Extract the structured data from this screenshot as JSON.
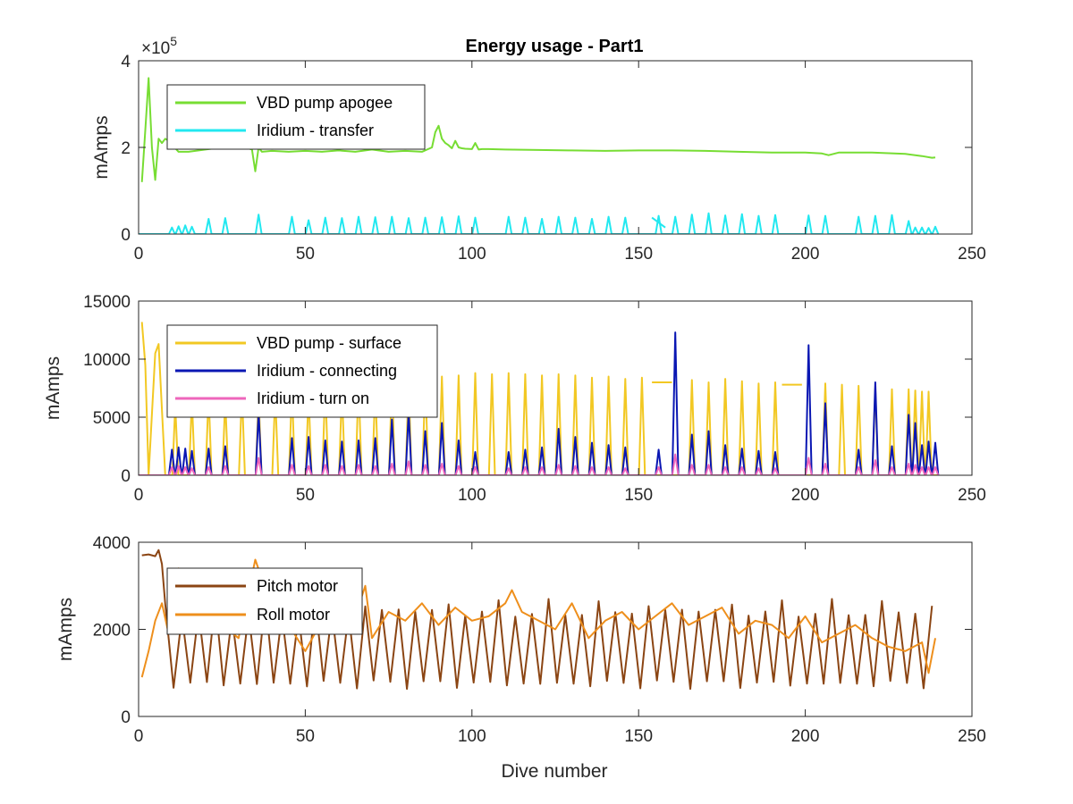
{
  "chart_data": [
    {
      "type": "line",
      "title": "Energy usage - Part1",
      "xlabel": "",
      "ylabel": "mAmps",
      "xlim": [
        0,
        250
      ],
      "ylim": [
        0,
        400000
      ],
      "exponent_label": "×10",
      "exponent_power": "5",
      "xticks": [
        0,
        50,
        100,
        150,
        200,
        250
      ],
      "yticks": [
        0,
        200000,
        400000
      ],
      "ytick_labels": [
        "0",
        "2",
        "4"
      ],
      "legend_position": "upper-left",
      "series": [
        {
          "name": "VBD pump apogee",
          "color": "#77dd33",
          "x": [
            1,
            2,
            3,
            4,
            5,
            6,
            7,
            8,
            9,
            12,
            15,
            20,
            25,
            30,
            34,
            35,
            36,
            37,
            40,
            45,
            50,
            55,
            60,
            65,
            70,
            75,
            80,
            85,
            88,
            89,
            90,
            91,
            92,
            93,
            94,
            95,
            96,
            97,
            98,
            100,
            101,
            102,
            103,
            105,
            110,
            120,
            130,
            140,
            150,
            160,
            170,
            180,
            190,
            200,
            205,
            207,
            210,
            220,
            230,
            235,
            238,
            239
          ],
          "values": [
            120000,
            240000,
            360000,
            200000,
            125000,
            220000,
            210000,
            220000,
            215000,
            190000,
            190000,
            195000,
            200000,
            205000,
            195000,
            145000,
            200000,
            190000,
            192000,
            190000,
            192000,
            190000,
            193000,
            190000,
            195000,
            190000,
            192000,
            190000,
            200000,
            235000,
            250000,
            220000,
            210000,
            205000,
            198000,
            215000,
            200000,
            198000,
            197000,
            196000,
            210000,
            195000,
            196000,
            196000,
            195000,
            194000,
            193000,
            192000,
            193000,
            193000,
            192000,
            190000,
            188000,
            188000,
            186000,
            182000,
            188000,
            188000,
            185000,
            180000,
            176000,
            177000
          ]
        },
        {
          "name": "Iridium - transfer",
          "color": "#22e8f0",
          "peaks": [
            [
              10,
              15000
            ],
            [
              12,
              18000
            ],
            [
              14,
              20000
            ],
            [
              16,
              17000
            ],
            [
              21,
              35000
            ],
            [
              26,
              37000
            ],
            [
              36,
              45000
            ],
            [
              46,
              40000
            ],
            [
              51,
              32000
            ],
            [
              56,
              38000
            ],
            [
              61,
              37000
            ],
            [
              66,
              40000
            ],
            [
              71,
              39000
            ],
            [
              76,
              40000
            ],
            [
              81,
              37000
            ],
            [
              86,
              38000
            ],
            [
              91,
              39000
            ],
            [
              96,
              41000
            ],
            [
              101,
              38000
            ],
            [
              111,
              40000
            ],
            [
              116,
              38000
            ],
            [
              121,
              35000
            ],
            [
              126,
              40000
            ],
            [
              131,
              38000
            ],
            [
              136,
              35000
            ],
            [
              141,
              40000
            ],
            [
              146,
              38000
            ],
            [
              156,
              42000
            ],
            [
              161,
              40000
            ],
            [
              166,
              45000
            ],
            [
              171,
              48000
            ],
            [
              176,
              43000
            ],
            [
              181,
              46000
            ],
            [
              186,
              42000
            ],
            [
              191,
              44000
            ],
            [
              201,
              43000
            ],
            [
              206,
              42000
            ],
            [
              216,
              40000
            ],
            [
              221,
              42000
            ],
            [
              226,
              44000
            ],
            [
              231,
              30000
            ],
            [
              233,
              15000
            ],
            [
              235,
              15000
            ],
            [
              237,
              14000
            ],
            [
              239,
              17000
            ]
          ],
          "segments": [
            [
              154,
              38000,
              158,
              15000
            ]
          ]
        }
      ]
    },
    {
      "type": "line",
      "title": "",
      "xlabel": "",
      "ylabel": "mAmps",
      "xlim": [
        0,
        250
      ],
      "ylim": [
        0,
        15000
      ],
      "xticks": [
        0,
        50,
        100,
        150,
        200,
        250
      ],
      "yticks": [
        0,
        5000,
        10000,
        15000
      ],
      "legend_position": "upper-left",
      "series": [
        {
          "name": "VBD pump - surface",
          "color": "#f2c823",
          "x": [
            1,
            2,
            3,
            5,
            6,
            8
          ],
          "values": [
            13200,
            9500,
            0,
            10500,
            11300,
            0
          ],
          "peaks": [
            [
              11,
              6000
            ],
            [
              16,
              6500
            ],
            [
              21,
              7000
            ],
            [
              26,
              6500
            ],
            [
              31,
              7200
            ],
            [
              36,
              6800
            ],
            [
              41,
              7000
            ],
            [
              46,
              7500
            ],
            [
              51,
              7000
            ],
            [
              56,
              7800
            ],
            [
              61,
              7300
            ],
            [
              66,
              8000
            ],
            [
              71,
              7600
            ],
            [
              76,
              8200
            ],
            [
              81,
              8000
            ],
            [
              86,
              8300
            ],
            [
              91,
              8500
            ],
            [
              96,
              8600
            ],
            [
              101,
              8800
            ],
            [
              106,
              8700
            ],
            [
              111,
              8800
            ],
            [
              116,
              8700
            ],
            [
              121,
              8600
            ],
            [
              126,
              8700
            ],
            [
              131,
              8600
            ],
            [
              136,
              8400
            ],
            [
              141,
              8500
            ],
            [
              146,
              8300
            ],
            [
              151,
              8400
            ],
            [
              166,
              8200
            ],
            [
              171,
              8000
            ],
            [
              176,
              8300
            ],
            [
              181,
              8100
            ],
            [
              186,
              7900
            ],
            [
              191,
              8000
            ],
            [
              206,
              7900
            ],
            [
              211,
              7800
            ],
            [
              216,
              7700
            ],
            [
              221,
              7500
            ],
            [
              226,
              7400
            ],
            [
              231,
              7400
            ],
            [
              233,
              7300
            ],
            [
              235,
              7200
            ],
            [
              237,
              7200
            ]
          ],
          "segments": [
            [
              154,
              8000,
              160,
              8000
            ],
            [
              193,
              7800,
              199,
              7800
            ]
          ]
        },
        {
          "name": "Iridium - connecting",
          "color": "#0a17b3",
          "peaks": [
            [
              10,
              2200
            ],
            [
              12,
              2400
            ],
            [
              14,
              2300
            ],
            [
              16,
              2100
            ],
            [
              21,
              2300
            ],
            [
              26,
              2500
            ],
            [
              36,
              5500
            ],
            [
              46,
              3200
            ],
            [
              51,
              3300
            ],
            [
              56,
              3000
            ],
            [
              61,
              2900
            ],
            [
              66,
              3000
            ],
            [
              71,
              3200
            ],
            [
              76,
              4800
            ],
            [
              81,
              5500
            ],
            [
              86,
              3800
            ],
            [
              91,
              4500
            ],
            [
              96,
              3000
            ],
            [
              101,
              2000
            ],
            [
              111,
              2000
            ],
            [
              116,
              2200
            ],
            [
              121,
              2400
            ],
            [
              126,
              4000
            ],
            [
              131,
              3300
            ],
            [
              136,
              2800
            ],
            [
              141,
              2600
            ],
            [
              146,
              2400
            ],
            [
              156,
              2200
            ],
            [
              161,
              12300
            ],
            [
              166,
              3500
            ],
            [
              171,
              3800
            ],
            [
              176,
              2600
            ],
            [
              181,
              2300
            ],
            [
              186,
              2100
            ],
            [
              191,
              2000
            ],
            [
              201,
              11200
            ],
            [
              206,
              6200
            ],
            [
              216,
              2200
            ],
            [
              221,
              8000
            ],
            [
              226,
              2500
            ],
            [
              231,
              5200
            ],
            [
              233,
              4500
            ],
            [
              235,
              2600
            ],
            [
              237,
              2900
            ],
            [
              239,
              2800
            ]
          ]
        },
        {
          "name": "Iridium - turn on",
          "color": "#ee66bb",
          "peaks": [
            [
              10,
              700
            ],
            [
              12,
              800
            ],
            [
              14,
              700
            ],
            [
              16,
              600
            ],
            [
              21,
              700
            ],
            [
              26,
              800
            ],
            [
              36,
              1500
            ],
            [
              46,
              900
            ],
            [
              51,
              800
            ],
            [
              56,
              900
            ],
            [
              61,
              800
            ],
            [
              66,
              900
            ],
            [
              71,
              800
            ],
            [
              76,
              1000
            ],
            [
              81,
              1200
            ],
            [
              86,
              900
            ],
            [
              91,
              1000
            ],
            [
              96,
              800
            ],
            [
              101,
              700
            ],
            [
              111,
              600
            ],
            [
              116,
              700
            ],
            [
              121,
              700
            ],
            [
              126,
              900
            ],
            [
              131,
              800
            ],
            [
              136,
              700
            ],
            [
              141,
              700
            ],
            [
              146,
              600
            ],
            [
              156,
              700
            ],
            [
              161,
              1800
            ],
            [
              166,
              900
            ],
            [
              171,
              900
            ],
            [
              176,
              700
            ],
            [
              181,
              700
            ],
            [
              186,
              600
            ],
            [
              191,
              600
            ],
            [
              201,
              1500
            ],
            [
              206,
              1000
            ],
            [
              216,
              700
            ],
            [
              221,
              1300
            ],
            [
              226,
              700
            ],
            [
              231,
              1000
            ],
            [
              233,
              900
            ],
            [
              235,
              700
            ],
            [
              237,
              700
            ],
            [
              239,
              700
            ]
          ]
        }
      ]
    },
    {
      "type": "line",
      "title": "",
      "xlabel": "Dive number",
      "ylabel": "mAmps",
      "xlim": [
        0,
        250
      ],
      "ylim": [
        0,
        4000
      ],
      "xticks": [
        0,
        50,
        100,
        150,
        200,
        250
      ],
      "yticks": [
        0,
        2000,
        4000
      ],
      "legend_position": "upper-left",
      "series": [
        {
          "name": "Pitch motor",
          "color": "#8b4513",
          "start": [
            [
              1,
              3700
            ],
            [
              3,
              3720
            ],
            [
              5,
              3680
            ],
            [
              6,
              3820
            ],
            [
              7,
              3500
            ]
          ],
          "peaks_range": [
            8,
            239
          ],
          "high": 2450,
          "low": 750
        },
        {
          "name": "Roll motor",
          "color": "#ee8f1c",
          "x": [
            1,
            3,
            5,
            7,
            9,
            12,
            15,
            20,
            25,
            30,
            35,
            40,
            45,
            50,
            55,
            60,
            65,
            68,
            70,
            75,
            80,
            85,
            90,
            95,
            100,
            105,
            110,
            112,
            115,
            120,
            125,
            130,
            135,
            140,
            145,
            150,
            155,
            160,
            165,
            170,
            175,
            180,
            185,
            190,
            195,
            200,
            205,
            210,
            215,
            220,
            225,
            230,
            235,
            237,
            239
          ],
          "values": [
            900,
            1500,
            2200,
            2600,
            1900,
            3400,
            2300,
            2900,
            2100,
            1800,
            3600,
            2500,
            2100,
            1500,
            2200,
            1900,
            2300,
            3000,
            1800,
            2400,
            2200,
            2600,
            2100,
            2500,
            2200,
            2300,
            2600,
            2900,
            2400,
            2200,
            2000,
            2600,
            1800,
            2200,
            2400,
            2000,
            2300,
            2600,
            2100,
            2300,
            2500,
            1900,
            2200,
            2100,
            1800,
            2300,
            1700,
            1900,
            2100,
            1800,
            1600,
            1500,
            1700,
            1000,
            1800
          ]
        }
      ]
    }
  ]
}
